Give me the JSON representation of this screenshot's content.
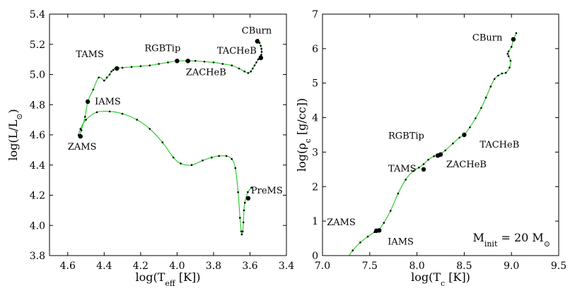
{
  "chart_data": [
    {
      "type": "line",
      "title": "",
      "xlabel_parts": [
        "log(T",
        "eff",
        " [K])"
      ],
      "ylabel_parts": [
        "log(L/L",
        "⊙",
        ")"
      ],
      "xlim": [
        4.7,
        3.4
      ],
      "ylim": [
        3.8,
        5.4
      ],
      "xticks": [
        4.6,
        4.4,
        4.2,
        4.0,
        3.8,
        3.6,
        3.4
      ],
      "xtick_labels": [
        "4.6",
        "4.4",
        "4.2",
        "4.0",
        "3.8",
        "3.6",
        "3.4"
      ],
      "yticks": [
        3.8,
        4.0,
        4.2,
        4.4,
        4.6,
        4.8,
        5.0,
        5.2,
        5.4
      ],
      "ytick_labels": [
        "3.8",
        "4.0",
        "4.2",
        "4.4",
        "4.6",
        "4.8",
        "5.0",
        "5.2",
        "5.4"
      ],
      "line_color": "#33cc33",
      "track": {
        "x": [
          3.592,
          3.612,
          3.628,
          3.633,
          3.636,
          3.64,
          3.645,
          3.648,
          3.655,
          3.665,
          3.68,
          3.7,
          3.73,
          3.77,
          3.81,
          3.86,
          3.92,
          3.98,
          4.02,
          4.08,
          4.15,
          4.22,
          4.3,
          4.37,
          4.44,
          4.5,
          4.53,
          4.54,
          4.538,
          4.525,
          4.505,
          4.49,
          4.46,
          4.43,
          4.4,
          4.385,
          4.37,
          4.36,
          4.35,
          4.34,
          4.3,
          4.25,
          4.2,
          4.15,
          4.1,
          4.05,
          4.0,
          3.95,
          3.9,
          3.85,
          3.8,
          3.75,
          3.7,
          3.66,
          3.63,
          3.61,
          3.595,
          3.585,
          3.575,
          3.565,
          3.555,
          3.548,
          3.545,
          3.538,
          3.536,
          3.537,
          3.541,
          3.548,
          3.556
        ],
        "y": [
          4.25,
          4.22,
          4.15,
          4.1,
          4.02,
          3.96,
          3.94,
          3.96,
          4.05,
          4.22,
          4.38,
          4.44,
          4.46,
          4.46,
          4.45,
          4.43,
          4.4,
          4.41,
          4.45,
          4.55,
          4.64,
          4.7,
          4.74,
          4.755,
          4.75,
          4.7,
          4.64,
          4.6,
          4.59,
          4.63,
          4.72,
          4.82,
          4.9,
          4.98,
          4.96,
          4.98,
          5.0,
          5.02,
          5.03,
          5.04,
          5.045,
          5.05,
          5.055,
          5.06,
          5.07,
          5.08,
          5.09,
          5.09,
          5.09,
          5.085,
          5.08,
          5.07,
          5.06,
          5.04,
          5.02,
          5.01,
          5.02,
          5.04,
          5.06,
          5.08,
          5.1,
          5.11,
          5.12,
          5.13,
          5.15,
          5.17,
          5.19,
          5.21,
          5.23
        ]
      },
      "points": [
        {
          "label": "PreMS",
          "x": 3.61,
          "y": 4.18
        },
        {
          "label": "ZAMS",
          "x": 4.53,
          "y": 4.59
        },
        {
          "label": "IAMS",
          "x": 4.49,
          "y": 4.82
        },
        {
          "label": "TAMS",
          "x": 4.33,
          "y": 5.04
        },
        {
          "label": "RGBTip",
          "x": 4.0,
          "y": 5.09
        },
        {
          "label": "ZACHeB",
          "x": 3.94,
          "y": 5.09
        },
        {
          "label": "TACHeB",
          "x": 3.54,
          "y": 5.11
        },
        {
          "label": "CBurn",
          "x": 3.56,
          "y": 5.22
        }
      ]
    },
    {
      "type": "line",
      "title": "",
      "xlabel_parts": [
        "log(T",
        "c",
        " [K])"
      ],
      "ylabel_parts": [
        "log(ρ",
        "c",
        " [g/cc])"
      ],
      "xlim": [
        7.0,
        9.5
      ],
      "ylim": [
        0,
        7
      ],
      "xticks": [
        7.0,
        7.5,
        8.0,
        8.5,
        9.0,
        9.5
      ],
      "xtick_labels": [
        "7.0",
        "7.5",
        "8.0",
        "8.5",
        "9.0",
        "9.5"
      ],
      "yticks": [
        0,
        1,
        2,
        3,
        4,
        5,
        6,
        7
      ],
      "ytick_labels": [
        "0",
        "1",
        "2",
        "3",
        "4",
        "5",
        "6",
        "7"
      ],
      "line_color": "#33cc33",
      "track": {
        "x": [
          7.27,
          7.32,
          7.4,
          7.48,
          7.55,
          7.58,
          7.6,
          7.65,
          7.72,
          7.8,
          7.88,
          7.96,
          8.02,
          8.07,
          8.12,
          8.18,
          8.22,
          8.25,
          8.3,
          8.38,
          8.45,
          8.5,
          8.56,
          8.62,
          8.68,
          8.73,
          8.78,
          8.82,
          8.86,
          8.9,
          8.94,
          8.98,
          8.99,
          8.97,
          8.96,
          8.97,
          9.0,
          9.02,
          9.05
        ],
        "y": [
          -0.05,
          0.15,
          0.38,
          0.55,
          0.68,
          0.72,
          0.76,
          0.95,
          1.3,
          1.8,
          2.2,
          2.45,
          2.55,
          2.65,
          2.78,
          2.88,
          2.92,
          2.95,
          3.05,
          3.25,
          3.42,
          3.5,
          3.72,
          3.98,
          4.28,
          4.58,
          4.9,
          5.12,
          5.22,
          5.28,
          5.3,
          5.45,
          5.65,
          5.78,
          5.85,
          5.92,
          6.05,
          6.25,
          6.45
        ]
      },
      "points": [
        {
          "label": "ZAMS",
          "x": 7.57,
          "y": 0.72
        },
        {
          "label": "IAMS",
          "x": 7.6,
          "y": 0.73
        },
        {
          "label": "TAMS",
          "x": 8.07,
          "y": 2.5
        },
        {
          "label": "RGBTip",
          "x": 8.22,
          "y": 2.9
        },
        {
          "label": "ZACHeB",
          "x": 8.25,
          "y": 2.93
        },
        {
          "label": "TACHeB",
          "x": 8.5,
          "y": 3.5
        },
        {
          "label": "CBurn",
          "x": 9.02,
          "y": 6.27
        }
      ],
      "legend_text_parts": [
        "M",
        "init",
        " = 20 M",
        "⊙"
      ]
    }
  ]
}
